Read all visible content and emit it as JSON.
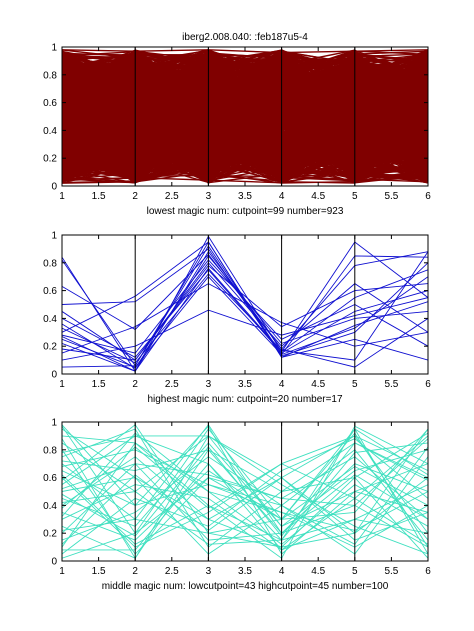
{
  "figure_title": "iberg2.008.040:   :feb187u5-4",
  "chart_data": [
    {
      "type": "parallel-coordinates",
      "title": "iberg2.008.040:   :feb187u5-4",
      "xlabel": "lowest magic num:  cutpoint=99  number=923",
      "xlim": [
        1,
        6
      ],
      "ylim": [
        0,
        1
      ],
      "xticks": [
        "1",
        "1.5",
        "2",
        "2.5",
        "3",
        "3.5",
        "4",
        "4.5",
        "5",
        "5.5",
        "6"
      ],
      "yticks": [
        "0",
        "0.2",
        "0.4",
        "0.6",
        "0.8",
        "1"
      ],
      "axes_x": [
        1,
        2,
        3,
        4,
        5,
        6
      ],
      "line_color": "#800000",
      "line_count": 923,
      "lines": [
        [
          0.98,
          0.97,
          0.98,
          0.96,
          0.97,
          0.98
        ],
        [
          0.02,
          0.03,
          0.1,
          0.2,
          0.05,
          0.03
        ],
        [
          0.5,
          0.45,
          0.6,
          0.55,
          0.6,
          0.5
        ],
        [
          0.9,
          0.1,
          0.8,
          0.3,
          0.9,
          0.2
        ],
        [
          0.1,
          0.9,
          0.2,
          0.8,
          0.1,
          0.9
        ],
        [
          0.3,
          0.6,
          0.4,
          0.7,
          0.3,
          0.6
        ],
        [
          0.7,
          0.3,
          0.8,
          0.25,
          0.7,
          0.4
        ],
        [
          0.05,
          0.2,
          0.15,
          0.25,
          0.1,
          0.05
        ],
        [
          0.95,
          0.8,
          0.9,
          0.85,
          0.95,
          0.9
        ],
        [
          0.6,
          0.75,
          0.5,
          0.4,
          0.8,
          0.7
        ],
        [
          0.2,
          0.4,
          0.3,
          0.35,
          0.45,
          0.2
        ],
        [
          0.85,
          0.55,
          0.95,
          0.6,
          0.5,
          0.85
        ]
      ]
    },
    {
      "type": "parallel-coordinates",
      "xlabel": "highest magic num:  cutpoint=20  number=17",
      "xlim": [
        1,
        6
      ],
      "ylim": [
        0,
        1
      ],
      "xticks": [
        "1",
        "1.5",
        "2",
        "2.5",
        "3",
        "3.5",
        "4",
        "4.5",
        "5",
        "5.5",
        "6"
      ],
      "yticks": [
        "0",
        "0.2",
        "0.4",
        "0.6",
        "0.8",
        "1"
      ],
      "axes_x": [
        1,
        2,
        3,
        4,
        5,
        6
      ],
      "line_color": "#1010d0",
      "line_count": 17,
      "lines": [
        [
          0.84,
          0.02,
          0.99,
          0.16,
          0.95,
          0.55
        ],
        [
          0.82,
          0.06,
          0.92,
          0.14,
          0.85,
          0.84
        ],
        [
          0.63,
          0.32,
          0.86,
          0.18,
          0.78,
          0.88
        ],
        [
          0.5,
          0.52,
          0.9,
          0.13,
          0.3,
          0.8
        ],
        [
          0.45,
          0.1,
          0.8,
          0.2,
          0.65,
          0.3
        ],
        [
          0.4,
          0.12,
          0.75,
          0.15,
          0.45,
          0.6
        ],
        [
          0.36,
          0.04,
          0.85,
          0.22,
          0.4,
          0.45
        ],
        [
          0.33,
          0.08,
          0.72,
          0.17,
          0.1,
          0.88
        ],
        [
          0.3,
          0.56,
          0.95,
          0.12,
          0.35,
          0.52
        ],
        [
          0.28,
          0.15,
          0.82,
          0.25,
          0.5,
          0.2
        ],
        [
          0.25,
          0.05,
          0.7,
          0.14,
          0.33,
          0.7
        ],
        [
          0.22,
          0.02,
          0.88,
          0.18,
          0.05,
          0.4
        ],
        [
          0.18,
          0.1,
          0.78,
          0.34,
          0.6,
          0.65
        ],
        [
          0.15,
          0.34,
          0.65,
          0.37,
          0.2,
          0.3
        ],
        [
          0.1,
          0.2,
          0.46,
          0.28,
          0.42,
          0.55
        ],
        [
          0.05,
          0.06,
          0.95,
          0.12,
          0.25,
          0.1
        ],
        [
          0.27,
          0.02,
          0.76,
          0.16,
          0.55,
          0.75
        ]
      ]
    },
    {
      "type": "parallel-coordinates",
      "xlabel": "middle magic num:  lowcutpoint=43  highcutpoint=45  number=100",
      "xlim": [
        1,
        6
      ],
      "ylim": [
        0,
        1
      ],
      "xticks": [
        "1",
        "1.5",
        "2",
        "2.5",
        "3",
        "3.5",
        "4",
        "4.5",
        "5",
        "5.5",
        "6"
      ],
      "yticks": [
        "0",
        "0.2",
        "0.4",
        "0.6",
        "0.8",
        "1"
      ],
      "axes_x": [
        1,
        2,
        3,
        4,
        5,
        6
      ],
      "line_color": "#40e0c0",
      "line_count": 100,
      "lines": [
        [
          0.97,
          0.2,
          0.95,
          0.3,
          0.92,
          0.1
        ],
        [
          0.9,
          0.85,
          0.4,
          0.15,
          0.95,
          0.05
        ],
        [
          0.85,
          0.5,
          0.9,
          0.6,
          0.2,
          0.95
        ],
        [
          0.8,
          0.05,
          0.6,
          0.45,
          0.75,
          0.3
        ],
        [
          0.75,
          0.95,
          0.1,
          0.5,
          0.85,
          0.6
        ],
        [
          0.72,
          0.65,
          0.8,
          0.2,
          0.4,
          0.88
        ],
        [
          0.7,
          0.3,
          0.2,
          0.1,
          0.6,
          0.92
        ],
        [
          0.68,
          0.8,
          0.55,
          0.35,
          0.1,
          0.4
        ],
        [
          0.65,
          0.4,
          0.97,
          0.05,
          0.5,
          0.7
        ],
        [
          0.6,
          0.1,
          0.35,
          0.7,
          0.9,
          0.2
        ],
        [
          0.55,
          0.9,
          0.7,
          0.15,
          0.3,
          0.55
        ],
        [
          0.5,
          0.6,
          0.05,
          0.4,
          0.8,
          0.15
        ],
        [
          0.45,
          0.25,
          0.85,
          0.25,
          0.65,
          0.8
        ],
        [
          0.4,
          0.75,
          0.3,
          0.6,
          0.15,
          0.35
        ],
        [
          0.35,
          0.15,
          0.65,
          0.3,
          0.95,
          0.62
        ],
        [
          0.3,
          0.55,
          0.45,
          0.08,
          0.45,
          0.9
        ],
        [
          0.25,
          0.02,
          0.9,
          0.55,
          0.25,
          0.05
        ],
        [
          0.2,
          0.7,
          0.15,
          0.2,
          0.7,
          0.5
        ],
        [
          0.15,
          0.35,
          0.75,
          0.4,
          0.05,
          0.75
        ],
        [
          0.1,
          0.85,
          0.5,
          0.12,
          0.55,
          0.25
        ],
        [
          0.05,
          0.45,
          0.25,
          0.65,
          0.88,
          0.45
        ],
        [
          0.02,
          0.2,
          0.6,
          0.3,
          0.35,
          0.95
        ],
        [
          0.95,
          0.6,
          0.3,
          0.1,
          0.2,
          0.6
        ],
        [
          0.88,
          0.02,
          0.8,
          0.5,
          0.6,
          0.02
        ],
        [
          0.78,
          0.9,
          0.9,
          0.25,
          0.5,
          0.35
        ],
        [
          0.62,
          0.12,
          0.4,
          0.02,
          0.97,
          0.7
        ],
        [
          0.52,
          0.7,
          0.62,
          0.45,
          0.4,
          0.1
        ],
        [
          0.42,
          0.5,
          0.12,
          0.15,
          0.78,
          0.85
        ],
        [
          0.32,
          0.92,
          0.5,
          0.35,
          0.22,
          0.5
        ],
        [
          0.22,
          0.3,
          0.98,
          0.2,
          0.62,
          0.3
        ],
        [
          0.12,
          0.62,
          0.22,
          0.6,
          0.9,
          0.65
        ],
        [
          0.08,
          0.08,
          0.7,
          0.08,
          0.3,
          0.2
        ],
        [
          0.98,
          0.4,
          0.55,
          0.4,
          0.12,
          0.82
        ],
        [
          0.58,
          0.98,
          0.2,
          0.3,
          0.68,
          0.4
        ],
        [
          0.48,
          0.18,
          0.82,
          0.18,
          0.85,
          0.58
        ],
        [
          0.38,
          0.82,
          0.38,
          0.7,
          0.45,
          0.12
        ]
      ]
    }
  ]
}
